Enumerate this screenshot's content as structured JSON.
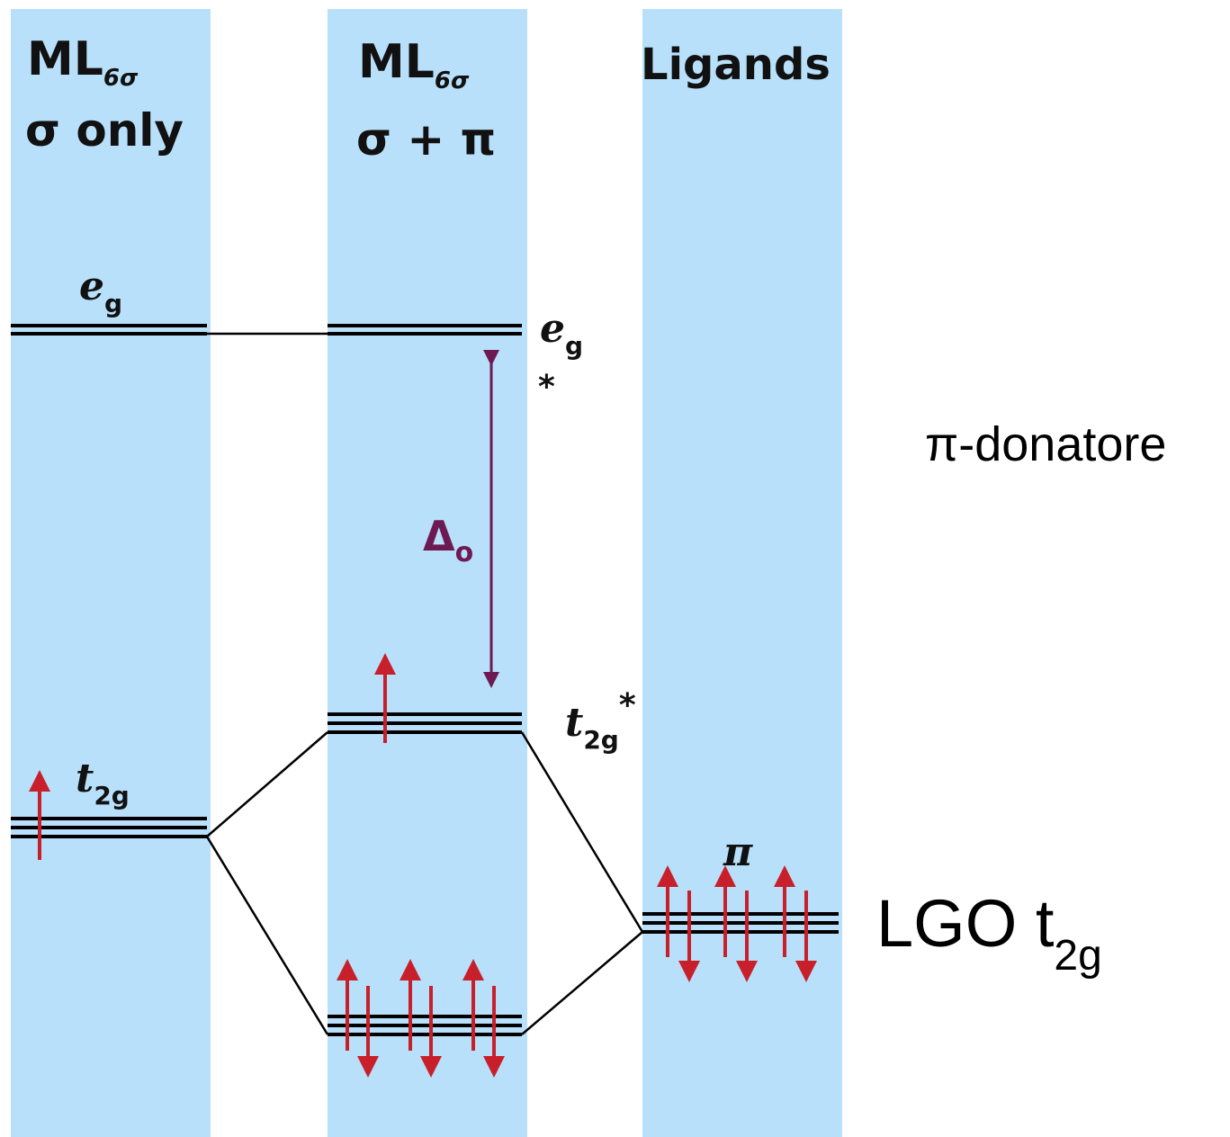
{
  "columns": {
    "left": {
      "title": "ML",
      "title_sub": "6σ",
      "subtitle": "σ only"
    },
    "middle": {
      "title": "ML",
      "title_sub": "6σ",
      "subtitle": "σ + π"
    },
    "right": {
      "title": "Ligands"
    }
  },
  "left_levels": {
    "eg": {
      "label": "e",
      "sub": "g"
    },
    "t2g": {
      "label": "t",
      "sub": "2g"
    }
  },
  "middle_levels": {
    "eg_star": {
      "label": "e",
      "sub": "g",
      "star": "*"
    },
    "t2g_star": {
      "label": "t",
      "sub": "2g",
      "star": "*"
    }
  },
  "gap": {
    "label": "Δ",
    "sub": "o"
  },
  "ligand_level": {
    "label": "π"
  },
  "annotations": {
    "donor_type": "π-donatore",
    "lgo_label": "LGO t",
    "lgo_sub": "2g"
  },
  "colors": {
    "column": "#b8e0fb",
    "spin_arrow": "#c8202a",
    "delta_arrow": "#6e1a52"
  }
}
